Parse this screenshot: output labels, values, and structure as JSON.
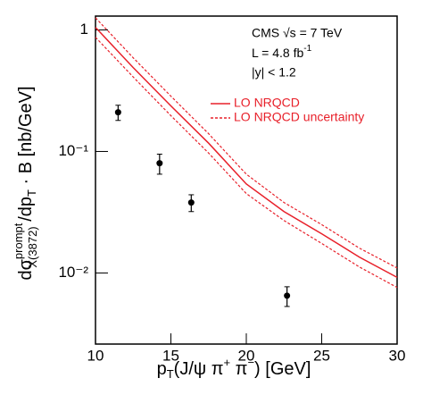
{
  "chart_data": {
    "type": "line",
    "annotations": [
      [
        "CMS √s = 7 TeV"
      ],
      [
        "L = 4.8 fb",
        "-1"
      ],
      [
        "|y| < 1.2"
      ]
    ],
    "xlabel": [
      "p",
      "T",
      "(J/ψ π",
      "+",
      " π",
      "−",
      ") [GeV]"
    ],
    "ylabel": [
      "dσ",
      "prompt",
      "X(3872)",
      " /dp",
      "T",
      " · B [nb/GeV]"
    ],
    "xlim": [
      10,
      30
    ],
    "xticks": [
      10,
      15,
      20,
      25,
      30
    ],
    "ylim": [
      0.0026,
      1.3
    ],
    "yticks": [
      1,
      {
        "value": 0.1,
        "label": "10⁻¹"
      },
      {
        "value": 0.01,
        "label": "10⁻²"
      }
    ],
    "log_y": true,
    "legend": "upper right",
    "line_x": [
      10,
      12.5,
      15,
      17.5,
      20,
      22.5,
      25,
      27.5,
      30
    ],
    "series": [
      {
        "name": "LO NRQCD",
        "color": "#e8202a",
        "dashed": false,
        "values": [
          1.05,
          0.49,
          0.237,
          0.117,
          0.054,
          0.032,
          0.021,
          0.0135,
          0.0092
        ]
      },
      {
        "name": "LO NRQCD uncertainty",
        "color": "#e8202a",
        "dashed": true,
        "upper": [
          1.26,
          0.59,
          0.285,
          0.14,
          0.065,
          0.038,
          0.025,
          0.016,
          0.011
        ],
        "lower": [
          0.87,
          0.41,
          0.197,
          0.097,
          0.045,
          0.027,
          0.0175,
          0.0112,
          0.0076
        ]
      }
    ],
    "points": {
      "color": "#000000",
      "x": [
        11.5,
        14.25,
        16.35,
        22.7
      ],
      "values": [
        0.21,
        0.08,
        0.038,
        0.0065
      ],
      "errors": [
        0.03,
        0.015,
        0.006,
        0.0012
      ]
    }
  }
}
